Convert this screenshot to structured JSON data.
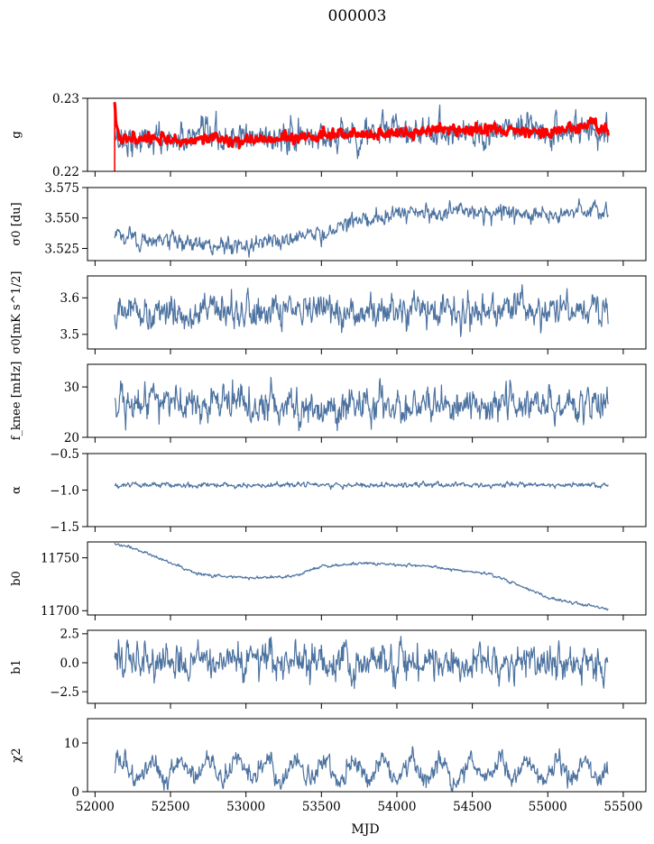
{
  "chart_data": {
    "type": "line",
    "title": "000003",
    "xlabel": "MJD",
    "xlim": [
      51950,
      55650
    ],
    "x_ticks": [
      52000,
      52500,
      53000,
      53500,
      54000,
      54500,
      55000,
      55500
    ],
    "x_tick_labels": [
      "52000",
      "52500",
      "53000",
      "53500",
      "54000",
      "54500",
      "55000",
      "55500"
    ],
    "x_range": [
      52130,
      55400
    ],
    "colors": {
      "series": "#4c72a0",
      "overlay": "#ff0000"
    },
    "grid": false,
    "panels": [
      {
        "key": "g",
        "ylabel": "g",
        "ylim": [
          0.22,
          0.23
        ],
        "y_ticks": [
          0.22,
          0.23
        ],
        "y_tick_labels": [
          "0.22",
          "0.23"
        ],
        "series": [
          {
            "color": "#4c72a0",
            "noise": 0.0012,
            "sample_points": [
              [
                52130,
                0.2245
              ],
              [
                52400,
                0.2243
              ],
              [
                53000,
                0.2245
              ],
              [
                53500,
                0.2248
              ],
              [
                54000,
                0.2255
              ],
              [
                54500,
                0.2255
              ],
              [
                55000,
                0.2255
              ],
              [
                55400,
                0.2257
              ]
            ]
          },
          {
            "color": "#ff0000",
            "noise": 0.0004,
            "sample_points": [
              [
                52130,
                0.2295
              ],
              [
                52160,
                0.2245
              ],
              [
                52500,
                0.2243
              ],
              [
                53000,
                0.2243
              ],
              [
                53500,
                0.2248
              ],
              [
                54000,
                0.2254
              ],
              [
                54500,
                0.2258
              ],
              [
                55000,
                0.2253
              ],
              [
                55300,
                0.2264
              ],
              [
                55400,
                0.2252
              ]
            ]
          }
        ]
      },
      {
        "key": "sigma0_du",
        "ylabel": "σ0 [du]",
        "ylim": [
          3.515,
          3.575
        ],
        "y_ticks": [
          3.525,
          3.55,
          3.575
        ],
        "y_tick_labels": [
          "3.525",
          "3.550",
          "3.575"
        ],
        "series": [
          {
            "color": "#4c72a0",
            "noise": 0.004,
            "sample_points": [
              [
                52130,
                3.535
              ],
              [
                52500,
                3.53
              ],
              [
                52900,
                3.527
              ],
              [
                53200,
                3.532
              ],
              [
                53500,
                3.537
              ],
              [
                53700,
                3.548
              ],
              [
                54000,
                3.553
              ],
              [
                54500,
                3.555
              ],
              [
                55000,
                3.553
              ],
              [
                55400,
                3.556
              ]
            ]
          }
        ]
      },
      {
        "key": "sigma0_mks",
        "ylabel": "σ0[mK s^1/2]",
        "ylim": [
          3.46,
          3.66
        ],
        "y_ticks": [
          3.5,
          3.6
        ],
        "y_tick_labels": [
          "3.5",
          "3.6"
        ],
        "series": [
          {
            "color": "#4c72a0",
            "noise": 0.025,
            "sample_points": [
              [
                52130,
                3.56
              ],
              [
                52800,
                3.56
              ],
              [
                53500,
                3.56
              ],
              [
                54000,
                3.56
              ],
              [
                54500,
                3.565
              ],
              [
                55000,
                3.565
              ],
              [
                55400,
                3.56
              ]
            ]
          }
        ]
      },
      {
        "key": "fknee",
        "ylabel": "f_knee [mHz]",
        "ylim": [
          20,
          34.5
        ],
        "y_ticks": [
          20,
          30
        ],
        "y_tick_labels": [
          "20",
          "30"
        ],
        "series": [
          {
            "color": "#4c72a0",
            "noise": 2.0,
            "sample_points": [
              [
                52130,
                26.5
              ],
              [
                52800,
                27.0
              ],
              [
                53500,
                26.5
              ],
              [
                54000,
                26.0
              ],
              [
                54500,
                27.0
              ],
              [
                55000,
                26.5
              ],
              [
                55400,
                27.0
              ]
            ]
          }
        ]
      },
      {
        "key": "alpha",
        "ylabel": "α",
        "ylim": [
          -1.5,
          -0.5
        ],
        "y_ticks": [
          -1.5,
          -1.0,
          -0.5
        ],
        "y_tick_labels": [
          "−1.5",
          "−1.0",
          "−0.5"
        ],
        "series": [
          {
            "color": "#4c72a0",
            "noise": 0.02,
            "sample_points": [
              [
                52130,
                -0.93
              ],
              [
                53500,
                -0.93
              ],
              [
                55400,
                -0.93
              ]
            ]
          }
        ]
      },
      {
        "key": "b0",
        "ylabel": "b0",
        "ylim": [
          11696,
          11765
        ],
        "y_ticks": [
          11700,
          11750
        ],
        "y_tick_labels": [
          "11700",
          "11750"
        ],
        "series": [
          {
            "color": "#4c72a0",
            "noise": 0.8,
            "sample_points": [
              [
                52130,
                11764
              ],
              [
                52300,
                11757
              ],
              [
                52500,
                11745
              ],
              [
                52700,
                11734
              ],
              [
                53000,
                11731
              ],
              [
                53300,
                11732
              ],
              [
                53500,
                11742
              ],
              [
                53800,
                11745
              ],
              [
                54200,
                11742
              ],
              [
                54600,
                11735
              ],
              [
                54800,
                11725
              ],
              [
                55000,
                11712
              ],
              [
                55300,
                11704
              ],
              [
                55400,
                11702
              ]
            ]
          }
        ]
      },
      {
        "key": "b1",
        "ylabel": "b1",
        "ylim": [
          -3.5,
          2.8
        ],
        "y_ticks": [
          -2.5,
          0.0,
          2.5
        ],
        "y_tick_labels": [
          "−2.5",
          "0.0",
          "2.5"
        ],
        "series": [
          {
            "color": "#4c72a0",
            "noise": 0.9,
            "sample_points": [
              [
                52130,
                0.0
              ],
              [
                53500,
                0.0
              ],
              [
                55400,
                0.0
              ]
            ]
          }
        ]
      },
      {
        "key": "chi2",
        "ylabel": "χ2",
        "ylim": [
          0,
          15
        ],
        "y_ticks": [
          0,
          10
        ],
        "y_tick_labels": [
          "0",
          "10"
        ],
        "series": [
          {
            "color": "#4c72a0",
            "noise": 1.2,
            "periodic_amplitude": 2.0,
            "sample_points": [
              [
                52130,
                4.5
              ],
              [
                53500,
                4.5
              ],
              [
                55400,
                4.5
              ]
            ]
          }
        ]
      }
    ]
  }
}
